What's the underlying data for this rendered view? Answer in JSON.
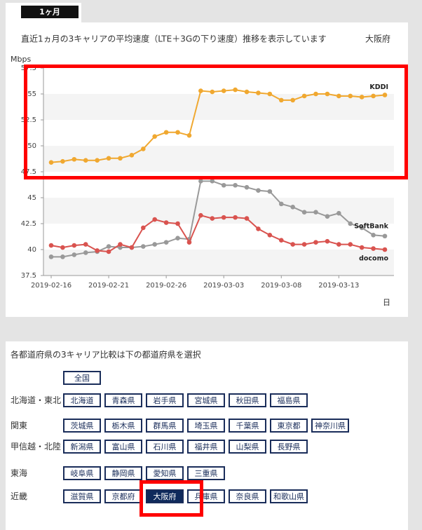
{
  "tab": "1ヶ月",
  "chart_data": {
    "type": "line",
    "title": "直近1ヵ月の3キャリアの平均速度（LTE＋3Gの下り速度）推移を表示しています",
    "region": "大阪府",
    "ylabel": "Mbps",
    "xlabel": "日",
    "categories": [
      "2019-02-16",
      null,
      null,
      null,
      null,
      "2019-02-21",
      null,
      null,
      null,
      null,
      "2019-02-26",
      null,
      null,
      null,
      null,
      "2019-03-03",
      null,
      null,
      null,
      null,
      "2019-03-08",
      null,
      null,
      null,
      null,
      "2019-03-13",
      null,
      null,
      null,
      null
    ],
    "ylim": [
      37.5,
      57.5
    ],
    "yticks": [
      37.5,
      40,
      42.5,
      45,
      47.5,
      50,
      52.5,
      55,
      57.5
    ],
    "bands": true,
    "series": [
      {
        "name": "KDDI",
        "color": "#f0a830",
        "values": [
          48.4,
          48.5,
          48.7,
          48.6,
          48.6,
          48.8,
          48.8,
          49.1,
          49.7,
          50.9,
          51.3,
          51.3,
          51.0,
          55.3,
          55.2,
          55.3,
          55.4,
          55.2,
          55.1,
          55.0,
          54.4,
          54.4,
          54.8,
          55.0,
          55.0,
          54.8,
          54.8,
          54.7,
          54.8,
          54.9
        ]
      },
      {
        "name": "SoftBank",
        "color": "#999999",
        "values": [
          39.3,
          39.3,
          39.5,
          39.7,
          39.8,
          40.3,
          40.2,
          40.2,
          40.3,
          40.5,
          40.7,
          41.1,
          41.0,
          46.6,
          46.6,
          46.2,
          46.2,
          46.0,
          45.7,
          45.6,
          44.4,
          44.1,
          43.6,
          43.6,
          43.2,
          43.5,
          42.5,
          42.1,
          41.4,
          41.3
        ]
      },
      {
        "name": "docomo",
        "color": "#d9534f",
        "values": [
          40.4,
          40.2,
          40.4,
          40.5,
          39.9,
          39.8,
          40.5,
          40.2,
          42.1,
          42.9,
          42.6,
          42.5,
          40.7,
          43.3,
          43.0,
          43.1,
          43.1,
          43.0,
          42.0,
          41.4,
          40.9,
          40.5,
          40.5,
          40.7,
          40.8,
          40.5,
          40.5,
          40.2,
          40.1,
          40.0
        ]
      }
    ]
  },
  "region_selector": {
    "title": "各都道府県の3キャリア比較は下の都道府県を選択",
    "regions": [
      {
        "name": null,
        "prefectures": [
          "全国"
        ]
      },
      {
        "name": "北海道・東北",
        "prefectures": [
          "北海道",
          "青森県",
          "岩手県",
          "宮城県",
          "秋田県",
          "福島県"
        ]
      },
      {
        "name": "関東",
        "prefectures": [
          "茨城県",
          "栃木県",
          "群馬県",
          "埼玉県",
          "千葉県",
          "東京都",
          "神奈川県"
        ]
      },
      {
        "name": "甲信越・北陸",
        "prefectures": [
          "新潟県",
          "富山県",
          "石川県",
          "福井県",
          "山梨県",
          "長野県"
        ]
      },
      {
        "name": "東海",
        "prefectures": [
          "岐阜県",
          "静岡県",
          "愛知県",
          "三重県"
        ]
      },
      {
        "name": "近畿",
        "prefectures": [
          "滋賀県",
          "京都府",
          "大阪府",
          "兵庫県",
          "奈良県",
          "和歌山県"
        ]
      }
    ],
    "selected": {
      "region": 5,
      "index": 2
    }
  }
}
